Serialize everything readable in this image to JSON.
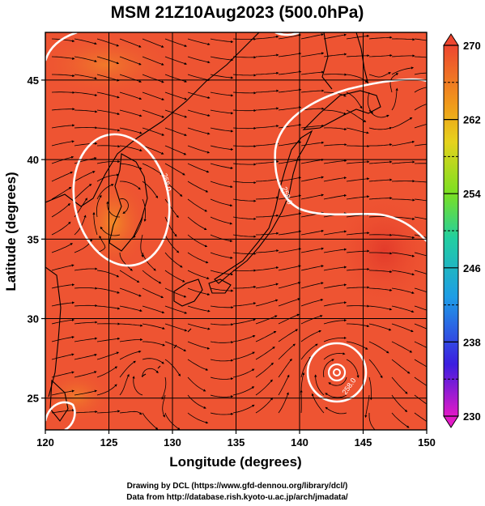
{
  "chart_data": {
    "type": "heatmap",
    "title": "MSM 21Z10Aug2023 (500.0hPa)",
    "xlabel": "Longitude (degrees)",
    "ylabel": "Latitude  (degrees)",
    "xlim": [
      120,
      150
    ],
    "ylim": [
      23,
      48
    ],
    "xticks": [
      120,
      125,
      130,
      135,
      140,
      145,
      150
    ],
    "yticks": [
      25,
      30,
      35,
      40,
      45
    ],
    "colorbar": {
      "min": 230,
      "max": 270,
      "ticks": [
        230,
        238,
        246,
        254,
        262,
        270
      ],
      "dashed_levels": [
        234,
        242,
        250,
        258,
        266
      ],
      "colors": [
        "#e21ac7",
        "#3c1ee0",
        "#1e9ce6",
        "#22cfa0",
        "#7ae022",
        "#e6d21c",
        "#f09a1a",
        "#ee4630"
      ]
    },
    "contour_labels": [
      "258.0",
      "258.0",
      "258.0"
    ],
    "layers": [
      "temperature shading",
      "streamlines",
      "258 K contour",
      "coastlines",
      "grid"
    ],
    "credits": [
      "Drawing by DCL (https://www.gfd-dennou.org/library/dcl/)",
      "Data from http://database.rish.kyoto-u.ac.jp/arch/jmadata/"
    ]
  }
}
